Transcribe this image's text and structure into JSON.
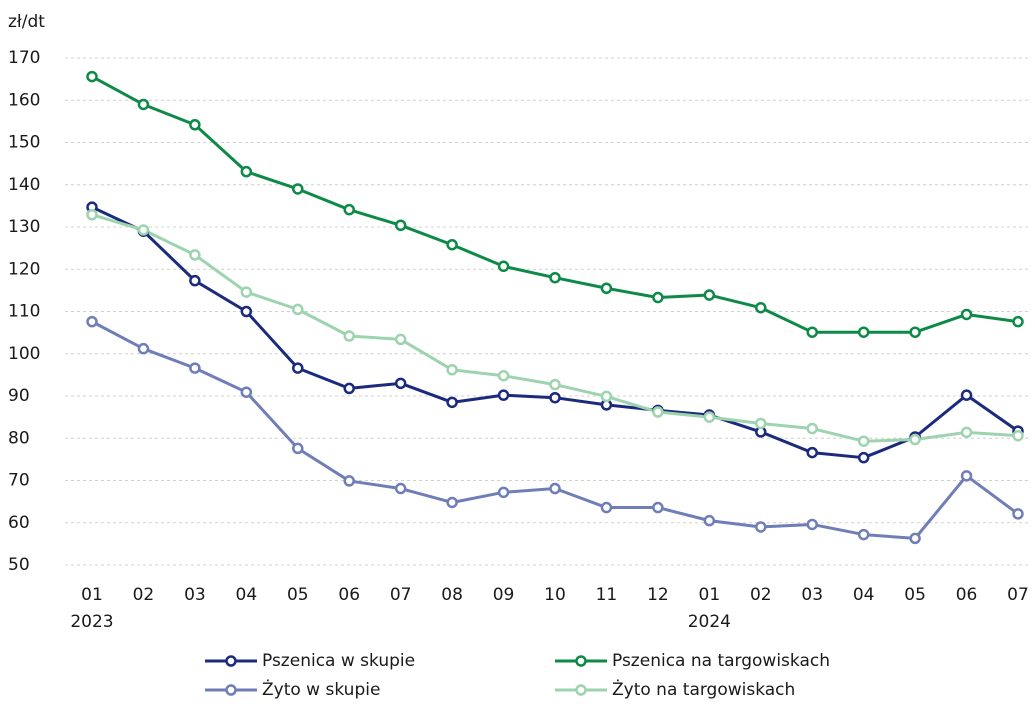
{
  "chart_data": {
    "type": "line",
    "y_label": "zł/dt",
    "categories": [
      "01",
      "02",
      "03",
      "04",
      "05",
      "06",
      "07",
      "08",
      "09",
      "10",
      "11",
      "12",
      "01",
      "02",
      "03",
      "04",
      "05",
      "06",
      "07"
    ],
    "category_years": [
      "2023",
      null,
      null,
      null,
      null,
      null,
      null,
      null,
      null,
      null,
      null,
      null,
      "2024",
      null,
      null,
      null,
      null,
      null,
      null
    ],
    "ylim": [
      50,
      170
    ],
    "yticks": [
      50,
      60,
      70,
      80,
      90,
      100,
      110,
      120,
      130,
      140,
      150,
      160,
      170
    ],
    "grid": true,
    "series": [
      {
        "name": "Pszenica w skupie",
        "color": "#1b2a7c",
        "values": [
          134.7,
          129,
          117.3,
          110,
          96.6,
          91.8,
          93,
          88.5,
          90.2,
          89.6,
          87.9,
          86.6,
          85.5,
          81.5,
          76.6,
          75.4,
          80.3,
          90.2,
          81.7
        ]
      },
      {
        "name": "Pszenica na targowiskach",
        "color": "#0e8a48",
        "values": [
          165.6,
          159,
          154.2,
          143.1,
          139,
          134.1,
          130.4,
          125.8,
          120.7,
          118,
          115.5,
          113.3,
          113.9,
          110.9,
          105.1,
          105.1,
          105.1,
          109.3,
          107.6
        ]
      },
      {
        "name": "Żyto w skupie",
        "color": "#6f7eb6",
        "values": [
          107.6,
          101.2,
          96.6,
          90.9,
          77.6,
          69.9,
          68.1,
          64.8,
          67.2,
          68.1,
          63.6,
          63.6,
          60.5,
          59,
          59.6,
          57.2,
          56.3,
          71.1,
          62.1
        ]
      },
      {
        "name": "Żyto na targowiskach",
        "color": "#9dd3ae",
        "values": [
          132.9,
          129.3,
          123.4,
          114.6,
          110.5,
          104.2,
          103.4,
          96.2,
          94.8,
          92.7,
          89.9,
          86.2,
          85,
          83.5,
          82.3,
          79.3,
          79.7,
          81.4,
          80.6
        ]
      }
    ]
  }
}
